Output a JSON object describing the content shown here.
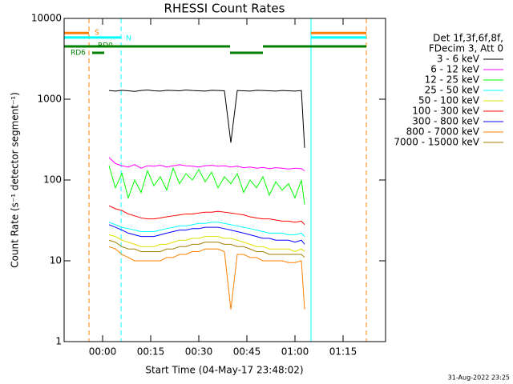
{
  "chart_data": {
    "type": "line",
    "title": "RHESSI Count Rates",
    "xlabel": "Start Time (04-May-17 23:48:02)",
    "ylabel": "Count Rate (s⁻¹ detector segment⁻¹)",
    "legend_header": [
      "Det 1f,3f,6f,8f,",
      "FDecim 3, Att 0"
    ],
    "footer": "31-Aug-2022 23:25",
    "log_y": true,
    "legend": "right",
    "xlim": [
      -12,
      88.25
    ],
    "ylim": [
      1,
      10000
    ],
    "xticks": [
      {
        "value": 0,
        "label": "00:00"
      },
      {
        "value": 15,
        "label": "00:15"
      },
      {
        "value": 30,
        "label": "00:30"
      },
      {
        "value": 45,
        "label": "00:45"
      },
      {
        "value": 60,
        "label": "01:00"
      },
      {
        "value": 75,
        "label": "01:15"
      }
    ],
    "yticks": [
      1,
      10,
      100,
      1000,
      10000
    ],
    "x": [
      2,
      4,
      6,
      8,
      10,
      12,
      14,
      16,
      18,
      20,
      22,
      24,
      26,
      28,
      30,
      32,
      34,
      36,
      38,
      40,
      42,
      44,
      46,
      48,
      50,
      52,
      54,
      56,
      58,
      60,
      62,
      63
    ],
    "series": [
      {
        "name": "3 - 6 keV",
        "color": "#000000",
        "values": [
          1280,
          1260,
          1290,
          1270,
          1250,
          1280,
          1300,
          1270,
          1260,
          1290,
          1280,
          1270,
          1300,
          1280,
          1270,
          1260,
          1290,
          1280,
          1270,
          290,
          1280,
          1270,
          1260,
          1290,
          1280,
          1270,
          1260,
          1280,
          1270,
          1260,
          1280,
          250
        ]
      },
      {
        "name": "6 - 12 keV",
        "color": "#ff00ff",
        "values": [
          190,
          160,
          150,
          145,
          155,
          140,
          150,
          148,
          152,
          145,
          150,
          155,
          150,
          148,
          145,
          150,
          152,
          148,
          150,
          145,
          148,
          142,
          145,
          140,
          143,
          138,
          142,
          140,
          137,
          140,
          138,
          130
        ]
      },
      {
        "name": "12 - 25 keV",
        "color": "#00ff00",
        "values": [
          150,
          80,
          120,
          60,
          100,
          70,
          130,
          85,
          110,
          75,
          140,
          90,
          120,
          100,
          135,
          95,
          125,
          80,
          110,
          90,
          120,
          70,
          100,
          80,
          110,
          65,
          95,
          75,
          90,
          60,
          100,
          50
        ]
      },
      {
        "name": "25 - 50 keV",
        "color": "#00ffff",
        "values": [
          30,
          28,
          26,
          25,
          24,
          23,
          23,
          23,
          24,
          25,
          26,
          27,
          27,
          28,
          29,
          29,
          30,
          30,
          29,
          28,
          27,
          26,
          25,
          24,
          23,
          22,
          22,
          22,
          21,
          21,
          22,
          20
        ]
      },
      {
        "name": "50 - 100 keV",
        "color": "#e0e000",
        "values": [
          21,
          20,
          18,
          17,
          16,
          15,
          15,
          15,
          16,
          16,
          17,
          18,
          18,
          19,
          19,
          20,
          20,
          20,
          19,
          19,
          18,
          17,
          16,
          15,
          15,
          14,
          14,
          14,
          14,
          13,
          14,
          13
        ]
      },
      {
        "name": "100 - 300 keV",
        "color": "#ff0000",
        "values": [
          48,
          44,
          42,
          38,
          36,
          34,
          33,
          33,
          34,
          35,
          36,
          37,
          38,
          38,
          39,
          40,
          40,
          41,
          40,
          39,
          38,
          37,
          35,
          34,
          33,
          33,
          32,
          31,
          31,
          30,
          31,
          28
        ]
      },
      {
        "name": "300 - 800 keV",
        "color": "#0000ff",
        "values": [
          28,
          26,
          24,
          22,
          21,
          20,
          20,
          20,
          21,
          22,
          23,
          24,
          24,
          25,
          25,
          26,
          26,
          26,
          25,
          24,
          23,
          22,
          21,
          20,
          19,
          19,
          18,
          18,
          18,
          17,
          18,
          16
        ]
      },
      {
        "name": "800 - 7000 keV",
        "color": "#ff8000",
        "values": [
          15,
          14,
          12,
          11,
          10,
          10,
          10,
          10,
          10,
          11,
          11,
          12,
          12,
          13,
          13,
          14,
          14,
          14,
          13,
          2.5,
          12,
          12,
          11,
          11,
          10,
          10,
          10,
          10,
          9.5,
          9.5,
          10,
          2.5
        ]
      },
      {
        "name": "7000 - 15000 keV",
        "color": "#a08000",
        "values": [
          18,
          17,
          15,
          14,
          14,
          13,
          13,
          13,
          13,
          14,
          14,
          15,
          15,
          16,
          16,
          17,
          17,
          17,
          16,
          16,
          15,
          15,
          14,
          13,
          13,
          12,
          12,
          12,
          12,
          12,
          12,
          11
        ]
      }
    ],
    "vlines": [
      {
        "x": -12,
        "color": "#00ffff",
        "dashed": false
      },
      {
        "x": -4.25,
        "color": "#ff8000",
        "dashed": true
      },
      {
        "x": 5.75,
        "color": "#00ffff",
        "dashed": true
      },
      {
        "x": 65,
        "color": "#00ffff",
        "dashed": false
      },
      {
        "x": 82.25,
        "color": "#ff8000",
        "dashed": true
      }
    ],
    "flags": [
      {
        "label": "S",
        "color": "#ff8000",
        "level": 6600,
        "segments": [
          [
            -12,
            -4.25
          ],
          [
            65,
            82.25
          ]
        ]
      },
      {
        "label": "N",
        "color": "#00ffff",
        "level": 5800,
        "segments": [
          [
            -12,
            5.75
          ],
          [
            65,
            82.25
          ]
        ]
      },
      {
        "label": "RD0",
        "color": "#008000",
        "level": 4500,
        "segments": [
          [
            -12,
            39.75
          ],
          [
            50,
            82.25
          ]
        ]
      },
      {
        "label": "RD6",
        "color": "#008000",
        "level": 3750,
        "segments": [
          [
            -3.25,
            0.5
          ],
          [
            39.75,
            50
          ]
        ]
      }
    ]
  }
}
